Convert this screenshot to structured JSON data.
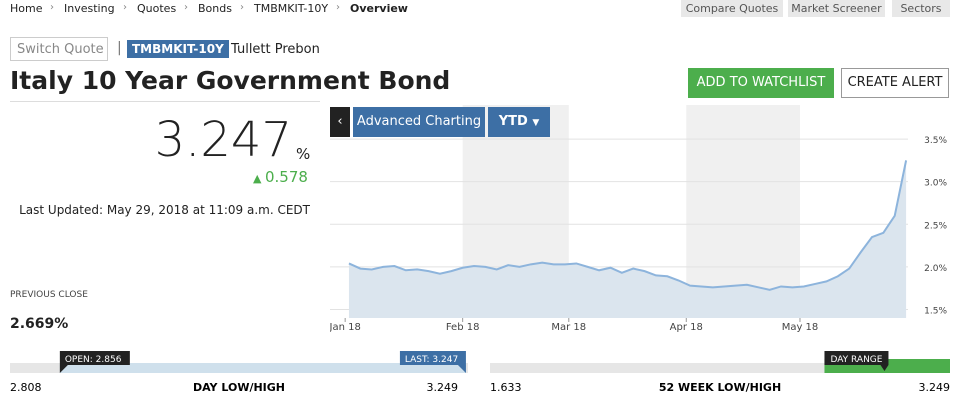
{
  "breadcrumb": [
    "Home",
    "Investing",
    "Quotes",
    "Bonds",
    "TMBMKIT-10Y",
    "Overview"
  ],
  "top_buttons": [
    "Compare Quotes",
    "Market Screener",
    "Sectors"
  ],
  "switch_quote": "Switch Quote",
  "ticker": "TMBMKIT-10Y",
  "source": "Tullett Prebon",
  "title": "Italy 10 Year Government Bond",
  "buttons": {
    "watchlist": "ADD TO WATCHLIST",
    "alert": "CREATE ALERT"
  },
  "quote": {
    "price": "3.247",
    "unit": "%",
    "change": "0.578",
    "last_updated": "Last Updated: May 29, 2018 at 11:09 a.m. CEDT"
  },
  "previous_close": {
    "label": "PREVIOUS CLOSE",
    "value": "2.669%"
  },
  "toolbar": {
    "back": "‹",
    "advanced": "Advanced Charting",
    "range": "YTD"
  },
  "chart_data": {
    "type": "line",
    "color": "#8db4dc",
    "fill": "#dbe5ee",
    "x": [
      2,
      5,
      8,
      11,
      14,
      17,
      20,
      23,
      26,
      29,
      32,
      35,
      38,
      41,
      44,
      47,
      50,
      53,
      56,
      59,
      62,
      65,
      68,
      71,
      74,
      77,
      80,
      83,
      86,
      89,
      92,
      95,
      98,
      101,
      104,
      107,
      110,
      113,
      116,
      119,
      122,
      125,
      128,
      131,
      134,
      137,
      140,
      143,
      146,
      149
    ],
    "values": [
      2.04,
      1.98,
      1.97,
      2.0,
      2.01,
      1.96,
      1.97,
      1.95,
      1.92,
      1.95,
      1.99,
      2.01,
      2.0,
      1.97,
      2.02,
      2.0,
      2.03,
      2.05,
      2.03,
      2.03,
      2.04,
      2.0,
      1.96,
      1.99,
      1.93,
      1.98,
      1.95,
      1.9,
      1.89,
      1.84,
      1.78,
      1.77,
      1.76,
      1.77,
      1.78,
      1.79,
      1.76,
      1.73,
      1.77,
      1.76,
      1.77,
      1.8,
      1.83,
      1.89,
      1.98,
      2.17,
      2.35,
      2.4,
      2.6,
      3.25
    ],
    "xlim": [
      -3,
      149.5
    ],
    "xticks": [
      {
        "value": 1,
        "label": "Jan 18"
      },
      {
        "value": 32,
        "label": "Feb 18"
      },
      {
        "value": 60,
        "label": "Mar 18"
      },
      {
        "value": 91,
        "label": "Apr 18"
      },
      {
        "value": 121,
        "label": "May 18"
      }
    ],
    "ylim": [
      1.4,
      3.9
    ],
    "yticks": [
      {
        "value": 1.5,
        "label": "1.5%"
      },
      {
        "value": 2.0,
        "label": "2.0%"
      },
      {
        "value": 2.5,
        "label": "2.5%"
      },
      {
        "value": 3.0,
        "label": "3.0%"
      },
      {
        "value": 3.5,
        "label": "3.5%"
      }
    ],
    "grid": true
  },
  "day_range": {
    "label": "DAY LOW/HIGH",
    "low": 2.808,
    "high": 3.249,
    "open": {
      "value": 2.856,
      "label": "OPEN: 2.856"
    },
    "last": {
      "value": 3.247,
      "label": "LAST: 3.247"
    }
  },
  "week52_range": {
    "label": "52 WEEK LOW/HIGH",
    "low": 1.633,
    "high": 3.249,
    "marker": "DAY RANGE"
  }
}
